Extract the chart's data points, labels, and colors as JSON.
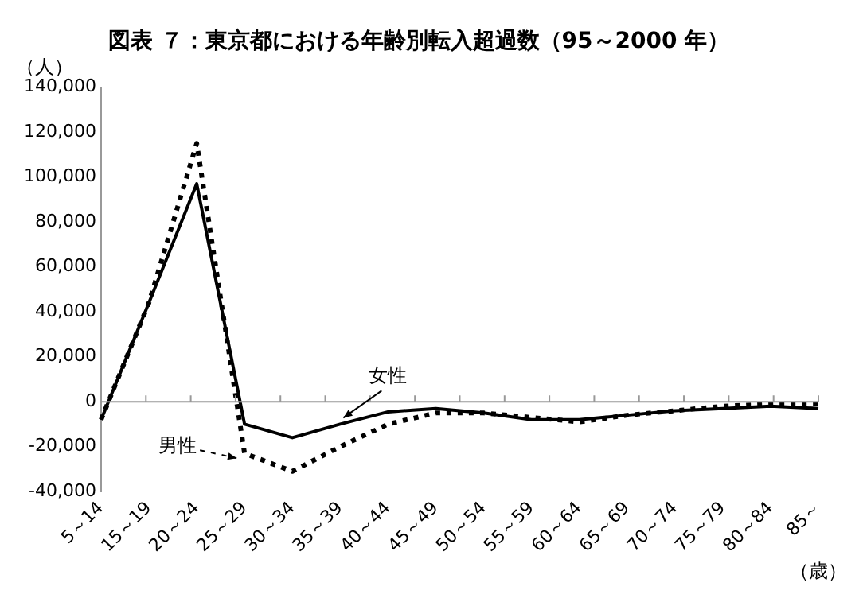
{
  "chart_data": {
    "type": "line",
    "title": "図表 ７：東京都における年齢別転入超過数（95～2000 年）",
    "ylabel": "（人）",
    "xlabel": "（歳）",
    "categories": [
      "5～14",
      "15～19",
      "20～24",
      "25～29",
      "30～34",
      "35～39",
      "40～44",
      "45～49",
      "50～54",
      "55～59",
      "60～64",
      "65～69",
      "70～74",
      "75～79",
      "80～84",
      "85～"
    ],
    "series": [
      {
        "name": "女性",
        "color": "#000000",
        "line_style": "solid",
        "values": [
          -8000,
          44000,
          97000,
          -10000,
          -16000,
          -10000,
          -4500,
          -3000,
          -5000,
          -8000,
          -8000,
          -6000,
          -4000,
          -3000,
          -2000,
          -3000
        ]
      },
      {
        "name": "男性",
        "color": "#000000",
        "line_style": "dotted",
        "values": [
          -8000,
          44000,
          115000,
          -23000,
          -31000,
          -20000,
          -10000,
          -5000,
          -5000,
          -7000,
          -9000,
          -6000,
          -4000,
          -2000,
          -1000,
          -1000
        ]
      }
    ],
    "ylim": [
      -40000,
      140000
    ],
    "yticks": [
      {
        "value": -40000,
        "label": "-40,000"
      },
      {
        "value": -20000,
        "label": "-20,000"
      },
      0,
      {
        "value": 20000,
        "label": "20,000"
      },
      {
        "value": 40000,
        "label": "40,000"
      },
      {
        "value": 60000,
        "label": "60,000"
      },
      {
        "value": 80000,
        "label": "80,000"
      },
      {
        "value": 100000,
        "label": "100,000"
      },
      {
        "value": 120000,
        "label": "120,000"
      },
      {
        "value": 140000,
        "label": "140,000"
      }
    ],
    "marker": "none"
  }
}
